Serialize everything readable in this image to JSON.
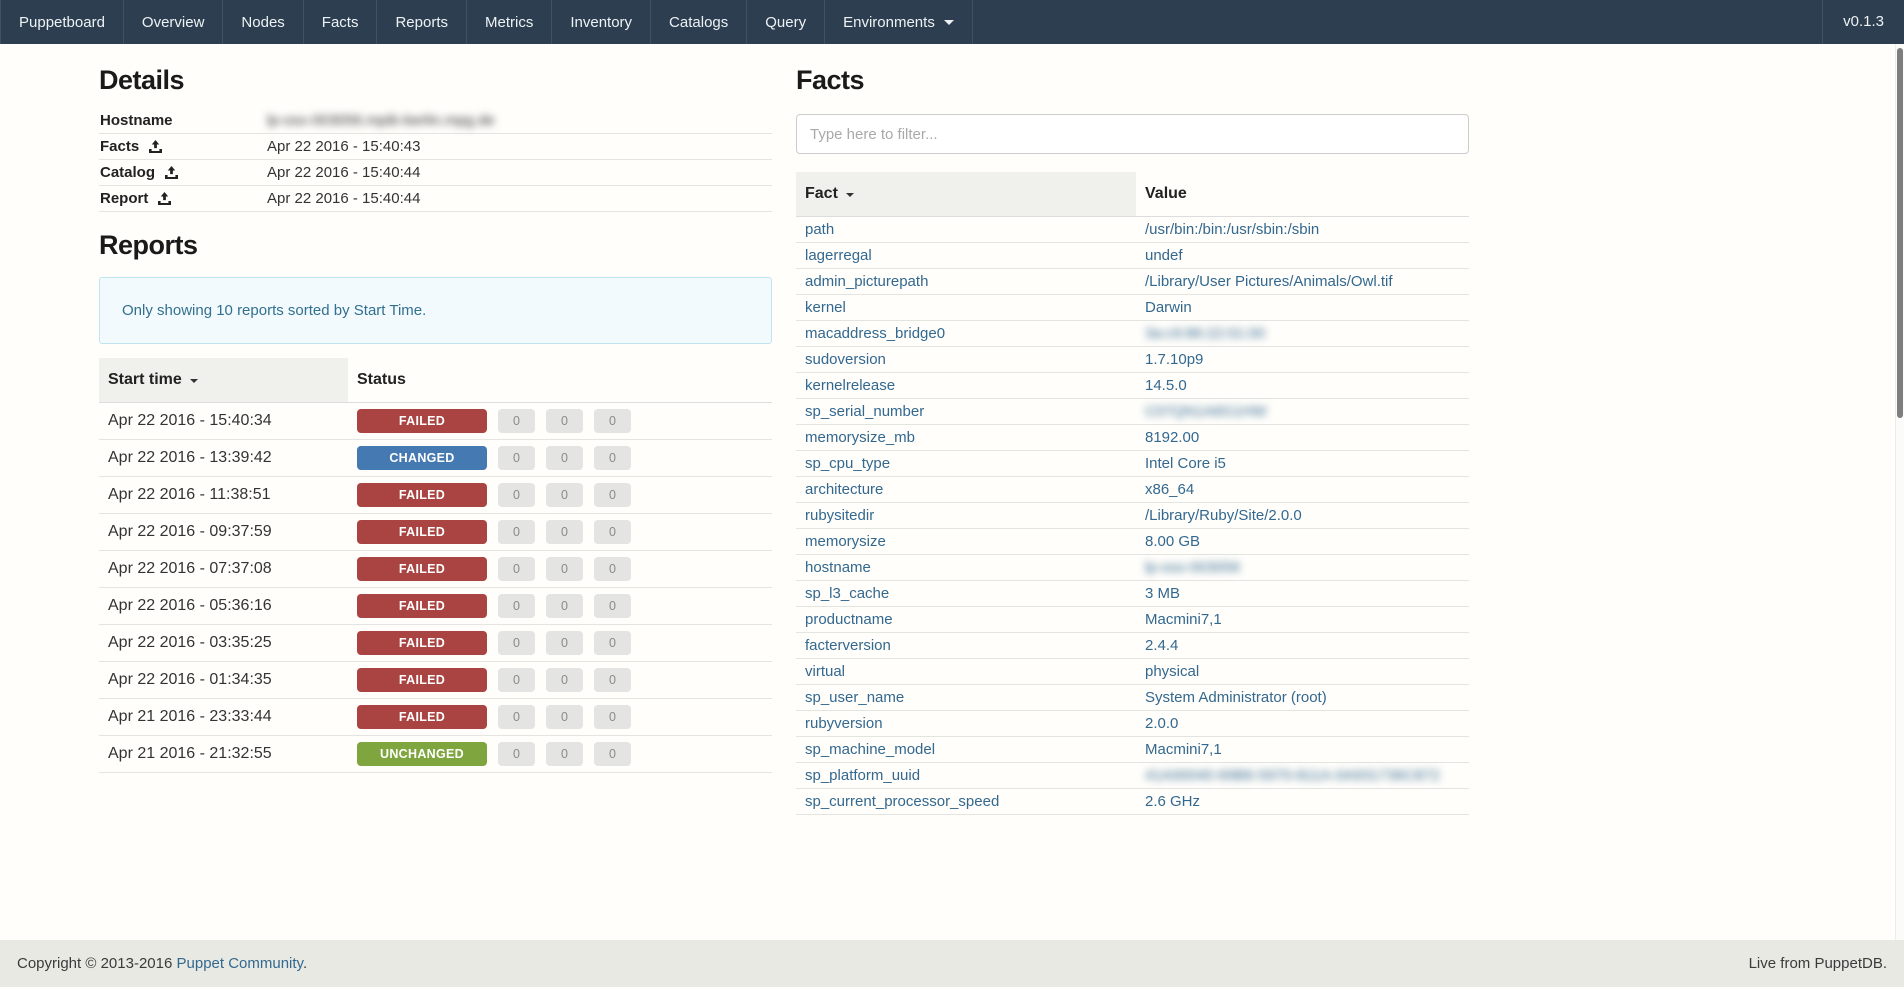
{
  "navbar": {
    "brand": "Puppetboard",
    "items": [
      "Overview",
      "Nodes",
      "Facts",
      "Reports",
      "Metrics",
      "Inventory",
      "Catalogs",
      "Query"
    ],
    "environments_dropdown": "Environments",
    "version": "v0.1.3"
  },
  "details": {
    "title": "Details",
    "rows": [
      {
        "label": "Hostname",
        "has_upload_icon": false,
        "value": "lp-osx-003056.mpib-berlin.mpg.de",
        "blurred": true
      },
      {
        "label": "Facts",
        "has_upload_icon": true,
        "value": "Apr 22 2016 - 15:40:43",
        "blurred": false
      },
      {
        "label": "Catalog",
        "has_upload_icon": true,
        "value": "Apr 22 2016 - 15:40:44",
        "blurred": false
      },
      {
        "label": "Report",
        "has_upload_icon": true,
        "value": "Apr 22 2016 - 15:40:44",
        "blurred": false
      }
    ]
  },
  "reports": {
    "title": "Reports",
    "notice": "Only showing 10 reports sorted by Start Time.",
    "columns": {
      "start_time": "Start time",
      "status": "Status"
    },
    "status_colors": {
      "FAILED": "#a94442",
      "CHANGED": "#4579b2",
      "UNCHANGED": "#7fa53e"
    },
    "rows": [
      {
        "start_time": "Apr 22 2016 - 15:40:34",
        "status": "FAILED",
        "counts": [
          "0",
          "0",
          "0"
        ]
      },
      {
        "start_time": "Apr 22 2016 - 13:39:42",
        "status": "CHANGED",
        "counts": [
          "0",
          "0",
          "0"
        ]
      },
      {
        "start_time": "Apr 22 2016 - 11:38:51",
        "status": "FAILED",
        "counts": [
          "0",
          "0",
          "0"
        ]
      },
      {
        "start_time": "Apr 22 2016 - 09:37:59",
        "status": "FAILED",
        "counts": [
          "0",
          "0",
          "0"
        ]
      },
      {
        "start_time": "Apr 22 2016 - 07:37:08",
        "status": "FAILED",
        "counts": [
          "0",
          "0",
          "0"
        ]
      },
      {
        "start_time": "Apr 22 2016 - 05:36:16",
        "status": "FAILED",
        "counts": [
          "0",
          "0",
          "0"
        ]
      },
      {
        "start_time": "Apr 22 2016 - 03:35:25",
        "status": "FAILED",
        "counts": [
          "0",
          "0",
          "0"
        ]
      },
      {
        "start_time": "Apr 22 2016 - 01:34:35",
        "status": "FAILED",
        "counts": [
          "0",
          "0",
          "0"
        ]
      },
      {
        "start_time": "Apr 21 2016 - 23:33:44",
        "status": "FAILED",
        "counts": [
          "0",
          "0",
          "0"
        ]
      },
      {
        "start_time": "Apr 21 2016 - 21:32:55",
        "status": "UNCHANGED",
        "counts": [
          "0",
          "0",
          "0"
        ]
      }
    ]
  },
  "facts": {
    "title": "Facts",
    "filter_placeholder": "Type here to filter...",
    "columns": {
      "fact": "Fact",
      "value": "Value"
    },
    "rows": [
      {
        "fact": "path",
        "value": "/usr/bin:/bin:/usr/sbin:/sbin",
        "blurred": false
      },
      {
        "fact": "lagerregal",
        "value": "undef",
        "blurred": false
      },
      {
        "fact": "admin_picturepath",
        "value": "/Library/User Pictures/Animals/Owl.tif",
        "blurred": false
      },
      {
        "fact": "kernel",
        "value": "Darwin",
        "blurred": false
      },
      {
        "fact": "macaddress_bridge0",
        "value": "3a:c9:86:22:01:00",
        "blurred": true
      },
      {
        "fact": "sudoversion",
        "value": "1.7.10p9",
        "blurred": false
      },
      {
        "fact": "kernelrelease",
        "value": "14.5.0",
        "blurred": false
      },
      {
        "fact": "sp_serial_number",
        "value": "C07QN1A6G1HW",
        "blurred": true
      },
      {
        "fact": "memorysize_mb",
        "value": "8192.00",
        "blurred": false
      },
      {
        "fact": "sp_cpu_type",
        "value": "Intel Core i5",
        "blurred": false
      },
      {
        "fact": "architecture",
        "value": "x86_64",
        "blurred": false
      },
      {
        "fact": "rubysitedir",
        "value": "/Library/Ruby/Site/2.0.0",
        "blurred": false
      },
      {
        "fact": "memorysize",
        "value": "8.00 GB",
        "blurred": false
      },
      {
        "fact": "hostname",
        "value": "lp-osx-003056",
        "blurred": true
      },
      {
        "fact": "sp_l3_cache",
        "value": "3 MB",
        "blurred": false
      },
      {
        "fact": "productname",
        "value": "Macmini7,1",
        "blurred": false
      },
      {
        "fact": "facterversion",
        "value": "2.4.4",
        "blurred": false
      },
      {
        "fact": "virtual",
        "value": "physical",
        "blurred": false
      },
      {
        "fact": "sp_user_name",
        "value": "System Administrator (root)",
        "blurred": false
      },
      {
        "fact": "rubyversion",
        "value": "2.0.0",
        "blurred": false
      },
      {
        "fact": "sp_machine_model",
        "value": "Macmini7,1",
        "blurred": false
      },
      {
        "fact": "sp_platform_uuid",
        "value": "41A00040-69B6-5970-811A-0A931736C872",
        "blurred": true
      },
      {
        "fact": "sp_current_processor_speed",
        "value": "2.6 GHz",
        "blurred": false
      }
    ]
  },
  "footer": {
    "copyright_prefix": "Copyright © 2013-2016 ",
    "community_link": "Puppet Community",
    "copyright_suffix": ".",
    "right_text": "Live from PuppetDB."
  }
}
